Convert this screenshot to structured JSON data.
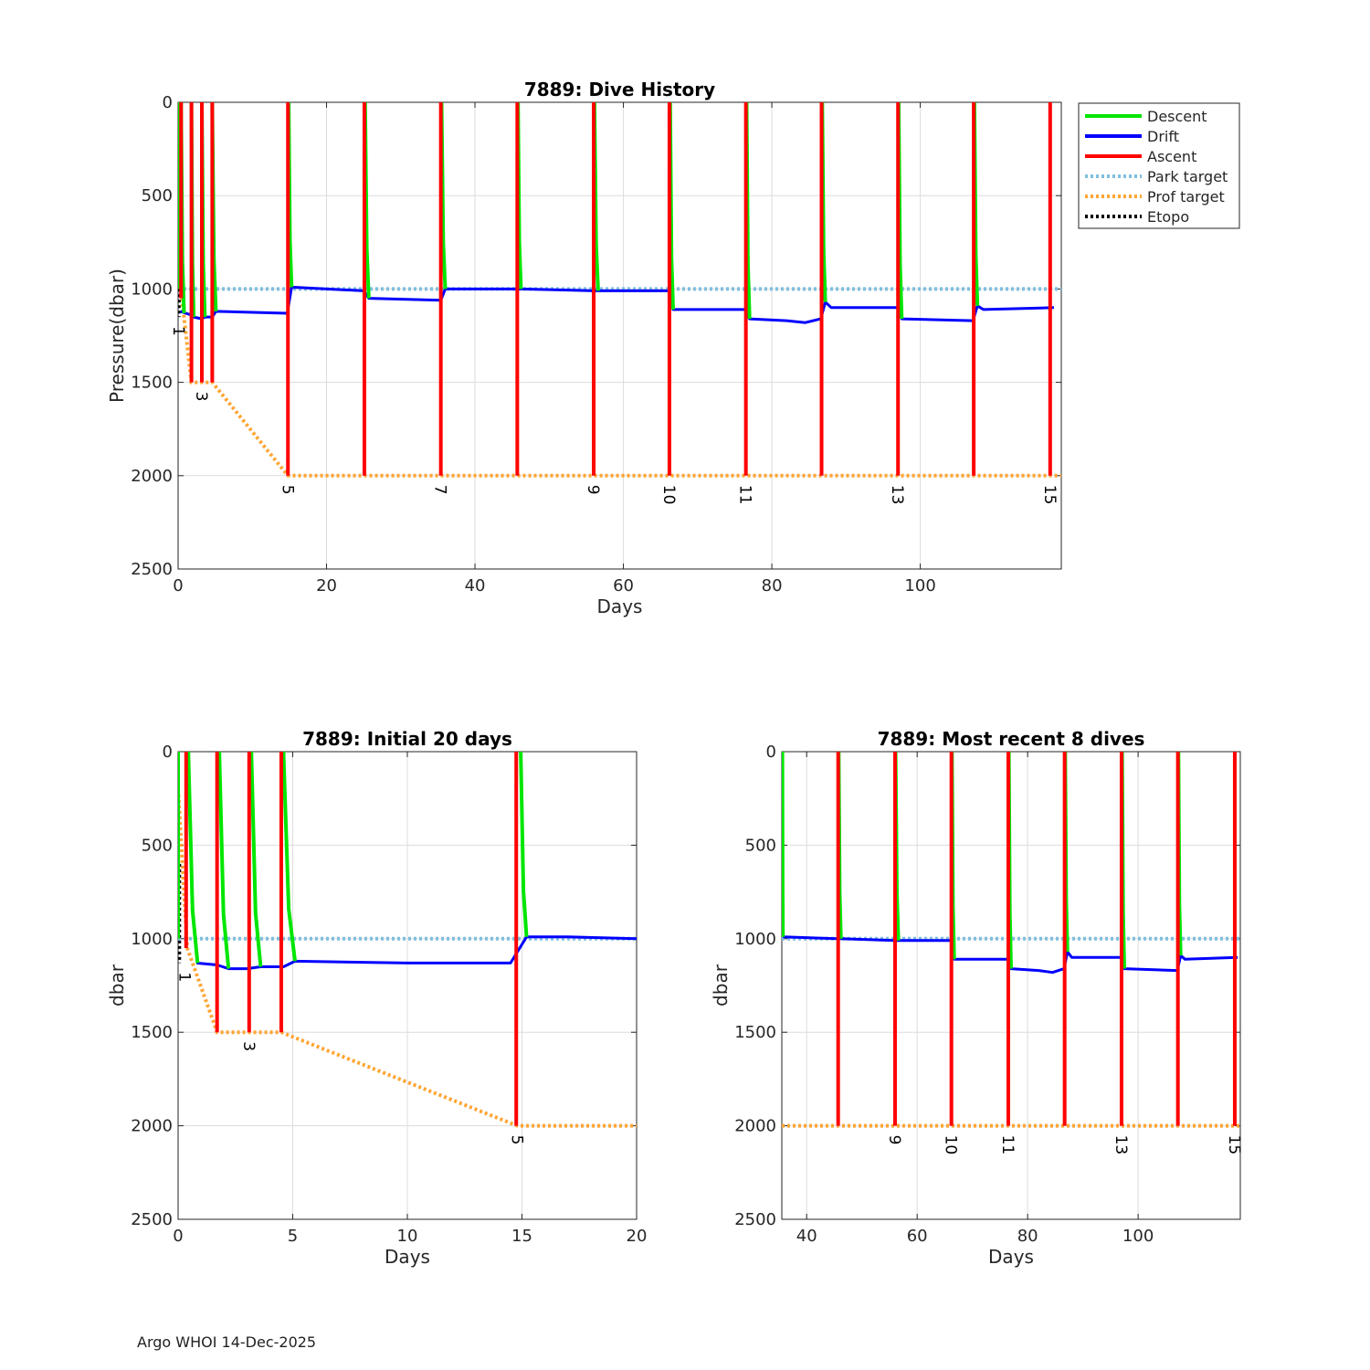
{
  "footer": "Argo WHOI 14-Dec-2025",
  "colors": {
    "descent": "#00e600",
    "drift": "#0000ff",
    "ascent": "#ff0000",
    "park": "#7fbfdf",
    "prof": "#ffa533",
    "etopo": "#000000",
    "grid": "#dcdcdc"
  },
  "legend": [
    "Descent",
    "Drift",
    "Ascent",
    "Park target",
    "Prof target",
    "Etopo"
  ],
  "chart_data": [
    {
      "id": "history",
      "type": "line",
      "title": "7889: Dive History",
      "xlabel": "Days",
      "ylabel": "Pressure(dbar)",
      "xlim": [
        0,
        119
      ],
      "ylim": [
        2500,
        0
      ],
      "xticks": [
        0,
        20,
        40,
        60,
        80,
        100
      ],
      "yticks": [
        0,
        500,
        1000,
        1500,
        2000,
        2500
      ],
      "park_target": [
        [
          0,
          1000
        ],
        [
          119,
          1000
        ]
      ],
      "prof_target": [
        [
          0,
          200
        ],
        [
          0.5,
          1050
        ],
        [
          1.8,
          1500
        ],
        [
          4.6,
          1500
        ],
        [
          14.8,
          2000
        ],
        [
          119,
          2000
        ]
      ],
      "etopo": [
        [
          0.1,
          500
        ],
        [
          0.1,
          1150
        ]
      ],
      "drift": [
        [
          0.3,
          1120
        ],
        [
          1.8,
          1140
        ],
        [
          2.1,
          1150
        ],
        [
          3.2,
          1160
        ],
        [
          3.6,
          1150
        ],
        [
          4.6,
          1150
        ],
        [
          5.1,
          1120
        ],
        [
          14.7,
          1130
        ],
        [
          15.3,
          990
        ],
        [
          25.0,
          1010
        ],
        [
          25.7,
          1050
        ],
        [
          35.4,
          1060
        ],
        [
          36.0,
          1000
        ],
        [
          45.6,
          1000
        ],
        [
          46.2,
          1000
        ],
        [
          56.0,
          1010
        ],
        [
          56.6,
          1010
        ],
        [
          66.1,
          1010
        ],
        [
          66.7,
          1110
        ],
        [
          76.4,
          1110
        ],
        [
          77.0,
          1160
        ],
        [
          82.0,
          1170
        ],
        [
          84.5,
          1180
        ],
        [
          86.6,
          1160
        ],
        [
          87.2,
          1070
        ],
        [
          88.0,
          1100
        ],
        [
          96.9,
          1100
        ],
        [
          97.5,
          1160
        ],
        [
          107.1,
          1170
        ],
        [
          107.7,
          1090
        ],
        [
          108.5,
          1110
        ],
        [
          118.0,
          1100
        ]
      ],
      "descents": [
        [
          0.0,
          0.0,
          1000
        ],
        [
          0.4,
          0.8,
          1130
        ],
        [
          1.8,
          2.1,
          1150
        ],
        [
          3.2,
          3.6,
          1150
        ],
        [
          4.6,
          5.1,
          1120
        ],
        [
          14.9,
          15.3,
          990
        ],
        [
          25.2,
          25.7,
          1050
        ],
        [
          35.5,
          36.0,
          1000
        ],
        [
          45.8,
          46.2,
          1000
        ],
        [
          56.1,
          56.6,
          1010
        ],
        [
          66.3,
          66.7,
          1110
        ],
        [
          76.6,
          77.0,
          1160
        ],
        [
          86.8,
          87.2,
          1070
        ],
        [
          97.1,
          97.5,
          1160
        ],
        [
          107.3,
          107.7,
          1090
        ]
      ],
      "ascents": [
        [
          0.4,
          1050
        ],
        [
          1.8,
          1500
        ],
        [
          3.2,
          1500
        ],
        [
          4.6,
          1500
        ],
        [
          14.8,
          2000
        ],
        [
          25.1,
          2000
        ],
        [
          35.4,
          2000
        ],
        [
          45.7,
          2000
        ],
        [
          56.0,
          2000
        ],
        [
          66.2,
          2000
        ],
        [
          76.5,
          2000
        ],
        [
          86.7,
          2000
        ],
        [
          97.0,
          2000
        ],
        [
          107.2,
          2000
        ],
        [
          117.5,
          2000
        ]
      ],
      "profile_labels": [
        {
          "text": "1",
          "x": 0.1,
          "y": 1150
        },
        {
          "text": "3",
          "x": 3.2,
          "y": 1500
        },
        {
          "text": "5",
          "x": 14.8,
          "y": 2000
        },
        {
          "text": "7",
          "x": 35.4,
          "y": 2000
        },
        {
          "text": "9",
          "x": 56.0,
          "y": 2000
        },
        {
          "text": "10",
          "x": 66.2,
          "y": 2000
        },
        {
          "text": "11",
          "x": 76.5,
          "y": 2000
        },
        {
          "text": "13",
          "x": 97.0,
          "y": 2000
        },
        {
          "text": "15",
          "x": 117.5,
          "y": 2000
        }
      ]
    },
    {
      "id": "initial",
      "type": "line",
      "title": "7889: Initial 20 days",
      "xlabel": "Days",
      "ylabel": "dbar",
      "xlim": [
        0,
        20
      ],
      "ylim": [
        2500,
        0
      ],
      "xticks": [
        0,
        5,
        10,
        15,
        20
      ],
      "yticks": [
        0,
        500,
        1000,
        1500,
        2000,
        2500
      ],
      "park_target": [
        [
          0,
          1000
        ],
        [
          20,
          1000
        ]
      ],
      "prof_target": [
        [
          0,
          200
        ],
        [
          0.4,
          1050
        ],
        [
          1.7,
          1500
        ],
        [
          4.5,
          1500
        ],
        [
          14.8,
          2000
        ],
        [
          20,
          2000
        ]
      ],
      "etopo": [
        [
          0.05,
          600
        ],
        [
          0.05,
          1130
        ]
      ],
      "drift": [
        [
          0.8,
          1130
        ],
        [
          1.7,
          1140
        ],
        [
          2.2,
          1160
        ],
        [
          3.0,
          1160
        ],
        [
          3.6,
          1150
        ],
        [
          4.6,
          1150
        ],
        [
          5.1,
          1120
        ],
        [
          10.0,
          1130
        ],
        [
          14.5,
          1130
        ],
        [
          15.2,
          990
        ],
        [
          17.0,
          990
        ],
        [
          20.0,
          1000
        ]
      ],
      "descents": [
        [
          0.0,
          0.0,
          1000
        ],
        [
          0.45,
          0.85,
          1130
        ],
        [
          1.8,
          2.2,
          1160
        ],
        [
          3.2,
          3.6,
          1150
        ],
        [
          4.6,
          5.1,
          1120
        ],
        [
          14.95,
          15.2,
          990
        ]
      ],
      "ascents": [
        [
          0.35,
          1050
        ],
        [
          1.7,
          1500
        ],
        [
          3.1,
          1500
        ],
        [
          4.5,
          1500
        ],
        [
          14.75,
          2000
        ]
      ],
      "profile_labels": [
        {
          "text": "1",
          "x": 0.3,
          "y": 1130
        },
        {
          "text": "3",
          "x": 3.1,
          "y": 1500
        },
        {
          "text": "5",
          "x": 14.8,
          "y": 2000
        }
      ]
    },
    {
      "id": "recent",
      "type": "line",
      "title": "7889: Most recent 8 dives",
      "xlabel": "Days",
      "ylabel": "dbar",
      "xlim": [
        35.5,
        118.5
      ],
      "ylim": [
        2500,
        0
      ],
      "xticks": [
        40,
        60,
        80,
        100
      ],
      "yticks": [
        0,
        500,
        1000,
        1500,
        2000,
        2500
      ],
      "park_target": [
        [
          35.5,
          1000
        ],
        [
          118.5,
          1000
        ]
      ],
      "prof_target": [
        [
          35.5,
          2000
        ],
        [
          118.5,
          2000
        ]
      ],
      "etopo": [],
      "drift": [
        [
          35.7,
          990
        ],
        [
          45.6,
          1000
        ],
        [
          46.2,
          1000
        ],
        [
          56.0,
          1010
        ],
        [
          56.6,
          1010
        ],
        [
          66.1,
          1010
        ],
        [
          66.7,
          1110
        ],
        [
          76.4,
          1110
        ],
        [
          77.0,
          1160
        ],
        [
          82.0,
          1170
        ],
        [
          84.5,
          1180
        ],
        [
          86.6,
          1160
        ],
        [
          87.2,
          1070
        ],
        [
          88.0,
          1100
        ],
        [
          96.9,
          1100
        ],
        [
          97.5,
          1160
        ],
        [
          107.1,
          1170
        ],
        [
          107.7,
          1090
        ],
        [
          108.5,
          1110
        ],
        [
          118.0,
          1100
        ]
      ],
      "descents": [
        [
          35.6,
          35.7,
          990
        ],
        [
          45.8,
          46.2,
          1000
        ],
        [
          56.1,
          56.6,
          1010
        ],
        [
          66.3,
          66.7,
          1110
        ],
        [
          76.6,
          77.0,
          1160
        ],
        [
          86.8,
          87.2,
          1070
        ],
        [
          97.1,
          97.5,
          1160
        ],
        [
          107.3,
          107.7,
          1090
        ]
      ],
      "ascents": [
        [
          45.7,
          2000
        ],
        [
          56.0,
          2000
        ],
        [
          66.2,
          2000
        ],
        [
          76.5,
          2000
        ],
        [
          86.7,
          2000
        ],
        [
          97.0,
          2000
        ],
        [
          107.2,
          2000
        ],
        [
          117.5,
          2000
        ]
      ],
      "profile_labels": [
        {
          "text": "9",
          "x": 56.0,
          "y": 2000
        },
        {
          "text": "10",
          "x": 66.2,
          "y": 2000
        },
        {
          "text": "11",
          "x": 76.5,
          "y": 2000
        },
        {
          "text": "13",
          "x": 97.0,
          "y": 2000
        },
        {
          "text": "15",
          "x": 117.5,
          "y": 2000
        }
      ]
    }
  ]
}
